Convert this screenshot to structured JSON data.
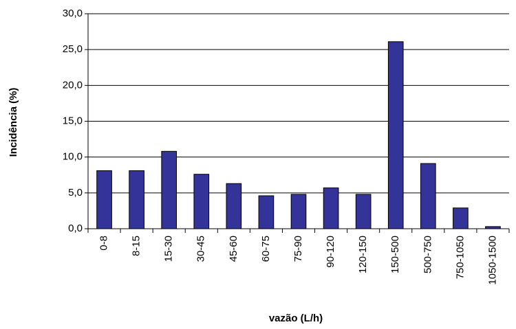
{
  "chart_data": {
    "type": "bar",
    "y_label": "Incidência (%)",
    "x_label": "vazão (L/h)",
    "categories": [
      "0-8",
      "8-15",
      "15-30",
      "30-45",
      "45-60",
      "60-75",
      "75-90",
      "90-120",
      "120-150",
      "150-500",
      "500-750",
      "750-1050",
      "1050-1500"
    ],
    "values": [
      8.1,
      8.1,
      10.8,
      7.6,
      6.3,
      4.6,
      4.8,
      5.7,
      4.8,
      26.1,
      9.1,
      2.9,
      0.3
    ],
    "color": "#333399",
    "ylim": [
      0,
      30
    ],
    "yticks": [
      {
        "value": 0,
        "label": "0,0"
      },
      {
        "value": 5,
        "label": "5,0"
      },
      {
        "value": 10,
        "label": "10,0"
      },
      {
        "value": 15,
        "label": "15,0"
      },
      {
        "value": 20,
        "label": "20,0"
      },
      {
        "value": 25,
        "label": "25,0"
      },
      {
        "value": 30,
        "label": "30,0"
      }
    ],
    "grid": true
  }
}
